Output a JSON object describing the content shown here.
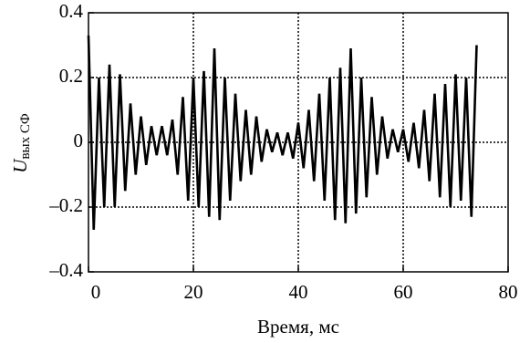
{
  "chart_data": {
    "type": "line",
    "xlabel": "Время, мс",
    "ylabel": "U",
    "ylabel_subscript": "вых СФ",
    "x": [
      0,
      1,
      2,
      3,
      4,
      5,
      6,
      7,
      8,
      9,
      10,
      11,
      12,
      13,
      14,
      15,
      16,
      17,
      18,
      19,
      20,
      21,
      22,
      23,
      24,
      25,
      26,
      27,
      28,
      29,
      30,
      31,
      32,
      33,
      34,
      35,
      36,
      37,
      38,
      39,
      40,
      41,
      42,
      43,
      44,
      45,
      46,
      47,
      48,
      49,
      50,
      51,
      52,
      53,
      54,
      55,
      56,
      57,
      58,
      59,
      60,
      61,
      62,
      63,
      64,
      65,
      66,
      67,
      68,
      69,
      70,
      71,
      72,
      73,
      74
    ],
    "series": [
      {
        "color": "#000000",
        "values": [
          0.33,
          -0.27,
          0.2,
          -0.2,
          0.24,
          -0.2,
          0.21,
          -0.15,
          0.12,
          -0.1,
          0.08,
          -0.07,
          0.05,
          -0.04,
          0.05,
          -0.04,
          0.07,
          -0.1,
          0.14,
          -0.18,
          0.2,
          -0.2,
          0.22,
          -0.23,
          0.29,
          -0.24,
          0.2,
          -0.18,
          0.15,
          -0.12,
          0.1,
          -0.1,
          0.08,
          -0.06,
          0.04,
          -0.03,
          0.03,
          -0.04,
          0.03,
          -0.05,
          0.06,
          -0.08,
          0.1,
          -0.12,
          0.15,
          -0.18,
          0.2,
          -0.24,
          0.23,
          -0.25,
          0.29,
          -0.22,
          0.2,
          -0.17,
          0.14,
          -0.1,
          0.08,
          -0.05,
          0.04,
          -0.03,
          0.04,
          -0.06,
          0.06,
          -0.08,
          0.1,
          -0.12,
          0.15,
          -0.17,
          0.18,
          -0.2,
          0.21,
          -0.18,
          0.2,
          -0.23,
          0.3
        ]
      }
    ],
    "xlim": [
      0,
      80
    ],
    "xticks": [
      0,
      20,
      40,
      60,
      80
    ],
    "ylim": [
      -0.4,
      0.4
    ],
    "yticks": [
      {
        "value": -0.4,
        "label": "–0.4"
      },
      {
        "value": -0.2,
        "label": "–0.2"
      },
      0,
      0.2,
      0.4
    ],
    "grid": true
  }
}
